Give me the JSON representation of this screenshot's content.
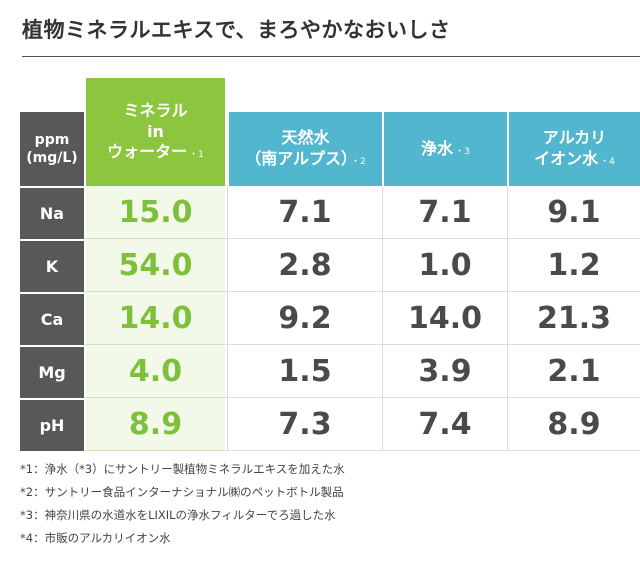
{
  "title": "植物ミネラルエキスで、まろやかなおいしさ",
  "table": {
    "unit_line1": "ppm",
    "unit_line2": "(mg/L)",
    "columns": [
      {
        "lines": [
          "ミネラル",
          "in",
          "ウォーター"
        ],
        "note": "・1"
      },
      {
        "lines": [
          "天然水",
          "（南アルプス）"
        ],
        "note": "・2"
      },
      {
        "lines": [
          "浄水"
        ],
        "note": "・3"
      },
      {
        "lines": [
          "アルカリ",
          "イオン水"
        ],
        "note": "・4"
      }
    ],
    "rows": [
      {
        "label": "Na",
        "values": [
          "15.0",
          "7.1",
          "7.1",
          "9.1"
        ]
      },
      {
        "label": "K",
        "values": [
          "54.0",
          "2.8",
          "1.0",
          "1.2"
        ]
      },
      {
        "label": "Ca",
        "values": [
          "14.0",
          "9.2",
          "14.0",
          "21.3"
        ]
      },
      {
        "label": "Mg",
        "values": [
          "4.0",
          "1.5",
          "3.9",
          "2.1"
        ]
      },
      {
        "label": "pH",
        "values": [
          "8.9",
          "7.3",
          "7.4",
          "8.9"
        ]
      }
    ]
  },
  "footnotes": [
    "*1：浄水（*3）にサントリー製植物ミネラルエキスを加えた水",
    "*2：サントリー食品インターナショナル㈱のペットボトル製品",
    "*3：神奈川県の水道水をLIXILの浄水フィルターでろ過した水",
    "*4：市販のアルカリイオン水"
  ],
  "colors": {
    "green": "#8cc63f",
    "blue": "#53b6cf",
    "dark_gray": "#58585a"
  }
}
